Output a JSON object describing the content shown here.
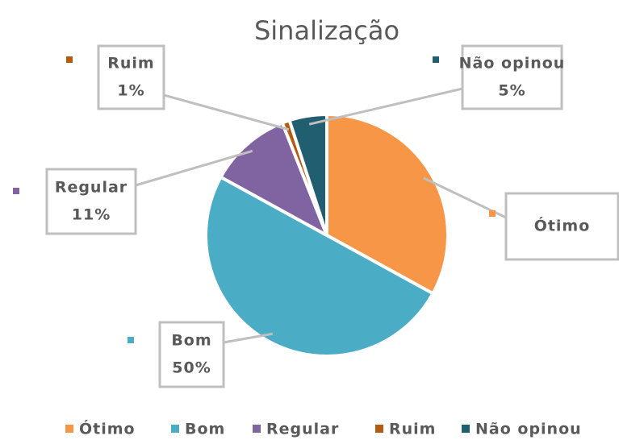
{
  "chart_data": {
    "type": "pie",
    "title": "Sinalização",
    "categories": [
      "Ótimo",
      "Bom",
      "Regular",
      "Ruim",
      "Não opinou"
    ],
    "values": [
      33,
      50,
      11,
      1,
      5
    ],
    "value_labels": [
      null,
      "50%",
      "11%",
      "1%",
      "5%"
    ],
    "colors": [
      "#f79646",
      "#4bacc6",
      "#8064a2",
      "#b35c11",
      "#215e70"
    ],
    "legend": "bottom"
  }
}
